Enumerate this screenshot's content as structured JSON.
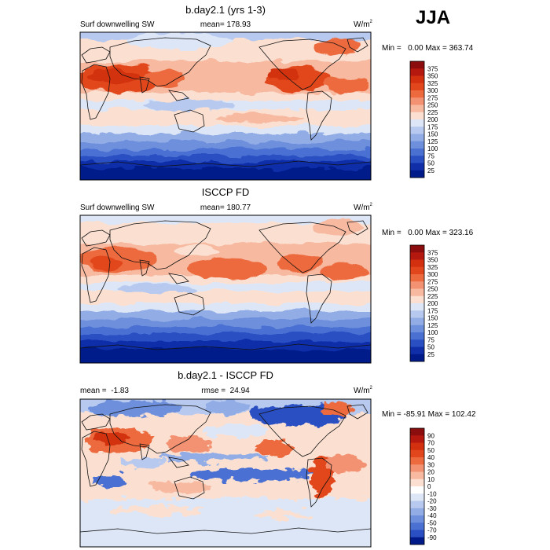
{
  "season": "JJA",
  "panels": [
    {
      "id": "model",
      "title": "b.day2.1 (yrs 1-3)",
      "left_label": "Surf downwelling SW",
      "center_label": "mean= 178.93",
      "units_base": "W/m",
      "units_sup": "2",
      "minmax": "Min =   0.00 Max = 363.74",
      "colorbar_labels": [
        "375",
        "350",
        "325",
        "300",
        "275",
        "250",
        "225",
        "200",
        "175",
        "150",
        "125",
        "100",
        "75",
        "50",
        "25"
      ],
      "colorbar_colors": [
        "#8c0d0d",
        "#b5180f",
        "#d2300f",
        "#e2461c",
        "#ec6a3e",
        "#f39272",
        "#f7b9a0",
        "#fbe0d2",
        "#dde6f6",
        "#b7c9ee",
        "#92ade6",
        "#6d8fdc",
        "#4a70d2",
        "#2a4fc3",
        "#0f2ea8",
        "#001a8a"
      ],
      "field": "abs"
    },
    {
      "id": "obs",
      "title": "ISCCP FD",
      "left_label": "Surf downwelling SW",
      "center_label": "mean= 180.77",
      "units_base": "W/m",
      "units_sup": "2",
      "minmax": "Min =   0.00 Max = 323.16",
      "colorbar_labels": [
        "375",
        "350",
        "325",
        "300",
        "275",
        "250",
        "225",
        "200",
        "175",
        "150",
        "125",
        "100",
        "75",
        "50",
        "25"
      ],
      "colorbar_colors": [
        "#8c0d0d",
        "#b5180f",
        "#d2300f",
        "#e2461c",
        "#ec6a3e",
        "#f39272",
        "#f7b9a0",
        "#fbe0d2",
        "#dde6f6",
        "#b7c9ee",
        "#92ade6",
        "#6d8fdc",
        "#4a70d2",
        "#2a4fc3",
        "#0f2ea8",
        "#001a8a"
      ],
      "field": "abs2"
    },
    {
      "id": "diff",
      "title": "b.day2.1 - ISCCP FD",
      "left_label": "mean =  -1.83",
      "center_label": "rmse =  24.94",
      "units_base": "W/m",
      "units_sup": "2",
      "minmax": "Min = -85.91 Max = 102.42",
      "colorbar_labels": [
        "90",
        "70",
        "50",
        "40",
        "30",
        "20",
        "10",
        "0",
        "-10",
        "-20",
        "-30",
        "-40",
        "-50",
        "-70",
        "-90"
      ],
      "colorbar_colors": [
        "#8c0d0d",
        "#b5180f",
        "#d2300f",
        "#e2461c",
        "#ec6a3e",
        "#f39272",
        "#f7b9a0",
        "#fbe0d2",
        "#ffffff",
        "#dde6f6",
        "#b7c9ee",
        "#92ade6",
        "#6d8fdc",
        "#4a70d2",
        "#2a4fc3",
        "#001a8a"
      ],
      "field": "diff"
    }
  ]
}
